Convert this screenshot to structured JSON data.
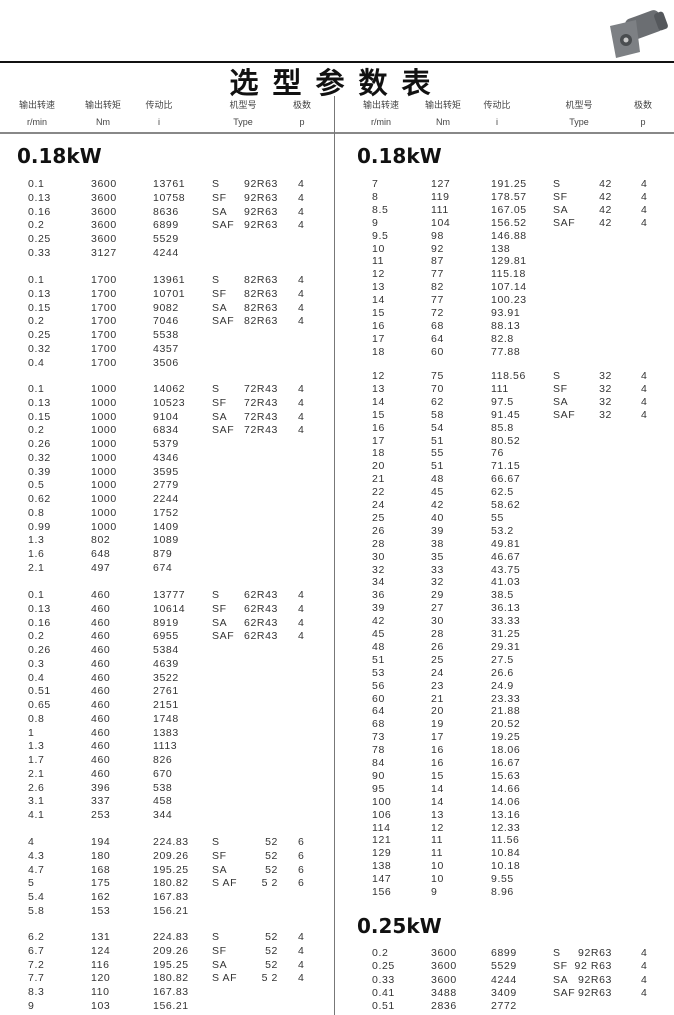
{
  "title": "选型参数表",
  "header": {
    "columns": [
      {
        "cn": "输出转速",
        "en": "r/min"
      },
      {
        "cn": "输出转矩",
        "en": "Nm"
      },
      {
        "cn": "传动比",
        "en": "i"
      },
      {
        "cn": "机型号",
        "en": "Type"
      },
      {
        "cn": "极数",
        "en": "p"
      }
    ]
  },
  "product_image": "gear-motor-photo",
  "left": {
    "section_title": "0.18kW",
    "blocks": [
      [
        [
          "0.1",
          "3600",
          "13761",
          "S",
          "92R63",
          "4"
        ],
        [
          "0.13",
          "3600",
          "10758",
          "SF",
          "92R63",
          "4"
        ],
        [
          "0.16",
          "3600",
          "8636",
          "SA",
          "92R63",
          "4"
        ],
        [
          "0.2",
          "3600",
          "6899",
          "SAF",
          "92R63",
          "4"
        ],
        [
          "0.25",
          "3600",
          "5529",
          "",
          "",
          ""
        ],
        [
          "0.33",
          "3127",
          "4244",
          "",
          "",
          ""
        ]
      ],
      [
        [
          "0.1",
          "1700",
          "13961",
          "S",
          "82R63",
          "4"
        ],
        [
          "0.13",
          "1700",
          "10701",
          "SF",
          "82R63",
          "4"
        ],
        [
          "0.15",
          "1700",
          "9082",
          "SA",
          "82R63",
          "4"
        ],
        [
          "0.2",
          "1700",
          "7046",
          "SAF",
          "82R63",
          "4"
        ],
        [
          "0.25",
          "1700",
          "5538",
          "",
          "",
          ""
        ],
        [
          "0.32",
          "1700",
          "4357",
          "",
          "",
          ""
        ],
        [
          "0.4",
          "1700",
          "3506",
          "",
          "",
          ""
        ]
      ],
      [
        [
          "0.1",
          "1000",
          "14062",
          "S",
          "72R43",
          "4"
        ],
        [
          "0.13",
          "1000",
          "10523",
          "SF",
          "72R43",
          "4"
        ],
        [
          "0.15",
          "1000",
          "9104",
          "SA",
          "72R43",
          "4"
        ],
        [
          "0.2",
          "1000",
          "6834",
          "SAF",
          "72R43",
          "4"
        ],
        [
          "0.26",
          "1000",
          "5379",
          "",
          "",
          ""
        ],
        [
          "0.32",
          "1000",
          "4346",
          "",
          "",
          ""
        ],
        [
          "0.39",
          "1000",
          "3595",
          "",
          "",
          ""
        ],
        [
          "0.5",
          "1000",
          "2779",
          "",
          "",
          ""
        ],
        [
          "0.62",
          "1000",
          "2244",
          "",
          "",
          ""
        ],
        [
          "0.8",
          "1000",
          "1752",
          "",
          "",
          ""
        ],
        [
          "0.99",
          "1000",
          "1409",
          "",
          "",
          ""
        ],
        [
          "1.3",
          "802",
          "1089",
          "",
          "",
          ""
        ],
        [
          "1.6",
          "648",
          "879",
          "",
          "",
          ""
        ],
        [
          "2.1",
          "497",
          "674",
          "",
          "",
          ""
        ]
      ],
      [
        [
          "0.1",
          "460",
          "13777",
          "S",
          "62R43",
          "4"
        ],
        [
          "0.13",
          "460",
          "10614",
          "SF",
          "62R43",
          "4"
        ],
        [
          "0.16",
          "460",
          "8919",
          "SA",
          "62R43",
          "4"
        ],
        [
          "0.2",
          "460",
          "6955",
          "SAF",
          "62R43",
          "4"
        ],
        [
          "0.26",
          "460",
          "5384",
          "",
          "",
          ""
        ],
        [
          "0.3",
          "460",
          "4639",
          "",
          "",
          ""
        ],
        [
          "0.4",
          "460",
          "3522",
          "",
          "",
          ""
        ],
        [
          "0.51",
          "460",
          "2761",
          "",
          "",
          ""
        ],
        [
          "0.65",
          "460",
          "2151",
          "",
          "",
          ""
        ],
        [
          "0.8",
          "460",
          "1748",
          "",
          "",
          ""
        ],
        [
          "1",
          "460",
          "1383",
          "",
          "",
          ""
        ],
        [
          "1.3",
          "460",
          "1113",
          "",
          "",
          ""
        ],
        [
          "1.7",
          "460",
          "826",
          "",
          "",
          ""
        ],
        [
          "2.1",
          "460",
          "670",
          "",
          "",
          ""
        ],
        [
          "2.6",
          "396",
          "538",
          "",
          "",
          ""
        ],
        [
          "3.1",
          "337",
          "458",
          "",
          "",
          ""
        ],
        [
          "4.1",
          "253",
          "344",
          "",
          "",
          ""
        ]
      ],
      [
        [
          "4",
          "194",
          "224.83",
          "S",
          "52",
          "6"
        ],
        [
          "4.3",
          "180",
          "209.26",
          "SF",
          "52",
          "6"
        ],
        [
          "4.7",
          "168",
          "195.25",
          "SA",
          "52",
          "6"
        ],
        [
          "5",
          "175",
          "180.82",
          "S AF",
          "5 2",
          "6"
        ],
        [
          "5.4",
          "162",
          "167.83",
          "",
          "",
          ""
        ],
        [
          "5.8",
          "153",
          "156.21",
          "",
          "",
          ""
        ]
      ],
      [
        [
          "6.2",
          "131",
          "224.83",
          "S",
          "52",
          "4"
        ],
        [
          "6.7",
          "124",
          "209.26",
          "SF",
          "52",
          "4"
        ],
        [
          "7.2",
          "116",
          "195.25",
          "SA",
          "52",
          "4"
        ],
        [
          "7.7",
          "120",
          "180.82",
          "S AF",
          "5 2",
          "4"
        ],
        [
          "8.3",
          "110",
          "167.83",
          "",
          "",
          ""
        ],
        [
          "9",
          "103",
          "156.21",
          "",
          "",
          ""
        ]
      ]
    ]
  },
  "right": {
    "section_title": "0.18kW",
    "blocks": [
      [
        [
          "7",
          "127",
          "191.25",
          "S",
          "42",
          "4"
        ],
        [
          "8",
          "119",
          "178.57",
          "SF",
          "42",
          "4"
        ],
        [
          "8.5",
          "111",
          "167.05",
          "SA",
          "42",
          "4"
        ],
        [
          "9",
          "104",
          "156.52",
          "SAF",
          "42",
          "4"
        ],
        [
          "9.5",
          "98",
          "146.88",
          "",
          "",
          ""
        ],
        [
          "10",
          "92",
          "138",
          "",
          "",
          ""
        ],
        [
          "11",
          "87",
          "129.81",
          "",
          "",
          ""
        ],
        [
          "12",
          "77",
          "115.18",
          "",
          "",
          ""
        ],
        [
          "13",
          "82",
          "107.14",
          "",
          "",
          ""
        ],
        [
          "14",
          "77",
          "100.23",
          "",
          "",
          ""
        ],
        [
          "15",
          "72",
          "93.91",
          "",
          "",
          ""
        ],
        [
          "16",
          "68",
          "88.13",
          "",
          "",
          ""
        ],
        [
          "17",
          "64",
          "82.8",
          "",
          "",
          ""
        ],
        [
          "18",
          "60",
          "77.88",
          "",
          "",
          ""
        ]
      ],
      [
        [
          "12",
          "75",
          "118.56",
          "S",
          "32",
          "4"
        ],
        [
          "13",
          "70",
          "111",
          "SF",
          "32",
          "4"
        ],
        [
          "14",
          "62",
          "97.5",
          "SA",
          "32",
          "4"
        ],
        [
          "15",
          "58",
          "91.45",
          "SAF",
          "32",
          "4"
        ],
        [
          "16",
          "54",
          "85.8",
          "",
          "",
          ""
        ],
        [
          "17",
          "51",
          "80.52",
          "",
          "",
          ""
        ],
        [
          "18",
          "55",
          "76",
          "",
          "",
          ""
        ],
        [
          "20",
          "51",
          "71.15",
          "",
          "",
          ""
        ],
        [
          "21",
          "48",
          "66.67",
          "",
          "",
          ""
        ],
        [
          "22",
          "45",
          "62.5",
          "",
          "",
          ""
        ],
        [
          "24",
          "42",
          "58.62",
          "",
          "",
          ""
        ],
        [
          "25",
          "40",
          "55",
          "",
          "",
          ""
        ],
        [
          "26",
          "39",
          "53.2",
          "",
          "",
          ""
        ],
        [
          "28",
          "38",
          "49.81",
          "",
          "",
          ""
        ],
        [
          "30",
          "35",
          "46.67",
          "",
          "",
          ""
        ],
        [
          "32",
          "33",
          "43.75",
          "",
          "",
          ""
        ],
        [
          "34",
          "32",
          "41.03",
          "",
          "",
          ""
        ],
        [
          "36",
          "29",
          "38.5",
          "",
          "",
          ""
        ],
        [
          "39",
          "27",
          "36.13",
          "",
          "",
          ""
        ],
        [
          "42",
          "30",
          "33.33",
          "",
          "",
          ""
        ],
        [
          "45",
          "28",
          "31.25",
          "",
          "",
          ""
        ],
        [
          "48",
          "26",
          "29.31",
          "",
          "",
          ""
        ],
        [
          "51",
          "25",
          "27.5",
          "",
          "",
          ""
        ],
        [
          "53",
          "24",
          "26.6",
          "",
          "",
          ""
        ],
        [
          "56",
          "23",
          "24.9",
          "",
          "",
          ""
        ],
        [
          "60",
          "21",
          "23.33",
          "",
          "",
          ""
        ],
        [
          "64",
          "20",
          "21.88",
          "",
          "",
          ""
        ],
        [
          "68",
          "19",
          "20.52",
          "",
          "",
          ""
        ],
        [
          "73",
          "17",
          "19.25",
          "",
          "",
          ""
        ],
        [
          "78",
          "16",
          "18.06",
          "",
          "",
          ""
        ],
        [
          "84",
          "16",
          "16.67",
          "",
          "",
          ""
        ],
        [
          "90",
          "15",
          "15.63",
          "",
          "",
          ""
        ],
        [
          "95",
          "14",
          "14.66",
          "",
          "",
          ""
        ],
        [
          "100",
          "14",
          "14.06",
          "",
          "",
          ""
        ],
        [
          "106",
          "13",
          "13.16",
          "",
          "",
          ""
        ],
        [
          "114",
          "12",
          "12.33",
          "",
          "",
          ""
        ],
        [
          "121",
          "11",
          "11.56",
          "",
          "",
          ""
        ],
        [
          "129",
          "11",
          "10.84",
          "",
          "",
          ""
        ],
        [
          "138",
          "10",
          "10.18",
          "",
          "",
          ""
        ],
        [
          "147",
          "10",
          "9.55",
          "",
          "",
          ""
        ],
        [
          "156",
          "9",
          "8.96",
          "",
          "",
          ""
        ]
      ]
    ],
    "section2_title": "0.25kW",
    "blocks2": [
      [
        [
          "0.2",
          "3600",
          "6899",
          "S",
          "92R63",
          "4"
        ],
        [
          "0.25",
          "3600",
          "5529",
          "SF",
          "92 R63",
          "4"
        ],
        [
          "0.33",
          "3600",
          "4244",
          "SA",
          "92R63",
          "4"
        ],
        [
          "0.41",
          "3488",
          "3409",
          "SAF",
          "92R63",
          "4"
        ],
        [
          "0.51",
          "2836",
          "2772",
          "",
          "",
          ""
        ]
      ]
    ]
  }
}
